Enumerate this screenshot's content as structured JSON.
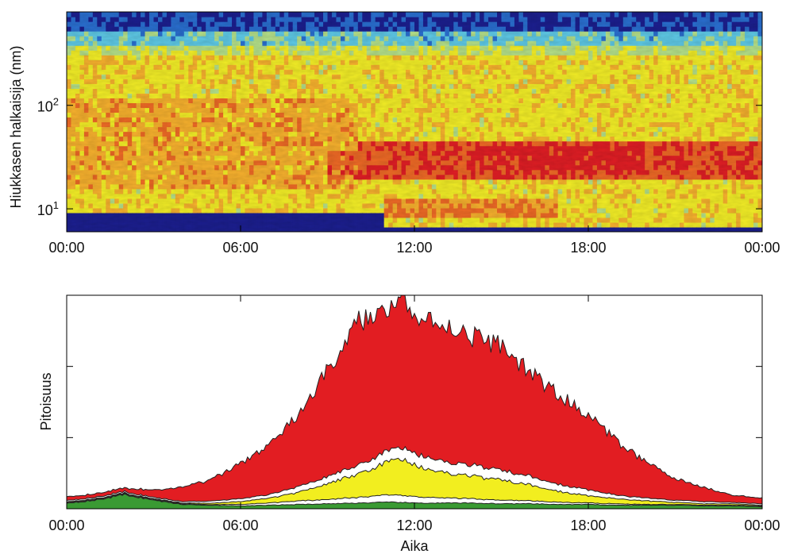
{
  "chart_data": [
    {
      "type": "heatmap",
      "ylabel": "Hiukkasen halkaisija (nm)",
      "xlabel": "",
      "x_ticks": [
        "00:00",
        "06:00",
        "12:00",
        "18:00",
        "00:00"
      ],
      "x_range_hours": [
        0,
        24
      ],
      "y_scale": "log",
      "y_ticks": [
        {
          "value": 10,
          "base": "10",
          "exp": "1"
        },
        {
          "value": 100,
          "base": "10",
          "exp": "2"
        }
      ],
      "ylim": [
        6,
        800
      ],
      "colormap": [
        "#1c1f8f",
        "#2a6fd0",
        "#5ec9e6",
        "#b4e08a",
        "#f3ee27",
        "#f7b12e",
        "#ee6a26",
        "#e01e25"
      ],
      "high_concentration_bands": [
        {
          "hours": [
            0,
            10
          ],
          "diameter_nm": [
            15,
            120
          ]
        },
        {
          "hours": [
            10,
            24
          ],
          "diameter_nm": [
            20,
            45
          ]
        },
        {
          "hours": [
            11,
            17
          ],
          "diameter_nm": [
            8,
            12
          ]
        }
      ],
      "low_diameter_cutoff_nm": {
        "before_11h": 9,
        "after_11h": 7
      }
    },
    {
      "type": "area",
      "stacked": true,
      "xlabel": "Aika",
      "ylabel": "Pitoisuus",
      "x_ticks": [
        "00:00",
        "06:00",
        "12:00",
        "18:00",
        "00:00"
      ],
      "x_range_hours": [
        0,
        24
      ],
      "ylim": [
        0,
        3
      ],
      "y_tick_positions": [
        1,
        2
      ],
      "x_hours": [
        0,
        1,
        2,
        3,
        4,
        5,
        6,
        7,
        8,
        9,
        10,
        11,
        11.5,
        12,
        13,
        14,
        15,
        16,
        17,
        18,
        19,
        20,
        21,
        22,
        23,
        24
      ],
      "series": [
        {
          "color": "#3a9a33",
          "values": [
            0.08,
            0.12,
            0.2,
            0.12,
            0.06,
            0.05,
            0.04,
            0.05,
            0.06,
            0.07,
            0.08,
            0.09,
            0.09,
            0.08,
            0.08,
            0.08,
            0.07,
            0.07,
            0.06,
            0.06,
            0.05,
            0.05,
            0.05,
            0.04,
            0.04,
            0.03
          ]
        },
        {
          "color": "#ffffff",
          "values": [
            0.01,
            0.01,
            0.01,
            0.01,
            0.01,
            0.01,
            0.02,
            0.03,
            0.05,
            0.06,
            0.08,
            0.1,
            0.1,
            0.09,
            0.07,
            0.06,
            0.05,
            0.04,
            0.03,
            0.02,
            0.02,
            0.01,
            0.01,
            0.01,
            0.01,
            0.01
          ]
        },
        {
          "color": "#f2ee1f",
          "values": [
            0.01,
            0.01,
            0.01,
            0.01,
            0.01,
            0.02,
            0.04,
            0.07,
            0.12,
            0.22,
            0.32,
            0.45,
            0.52,
            0.45,
            0.35,
            0.32,
            0.28,
            0.22,
            0.15,
            0.1,
            0.07,
            0.05,
            0.03,
            0.02,
            0.02,
            0.01
          ]
        },
        {
          "color": "#ffffff",
          "values": [
            0.02,
            0.02,
            0.02,
            0.02,
            0.02,
            0.03,
            0.04,
            0.05,
            0.08,
            0.1,
            0.12,
            0.15,
            0.16,
            0.17,
            0.16,
            0.15,
            0.14,
            0.12,
            0.1,
            0.08,
            0.05,
            0.04,
            0.03,
            0.03,
            0.02,
            0.02
          ]
        },
        {
          "color": "#e21d22",
          "values": [
            0.05,
            0.05,
            0.05,
            0.1,
            0.2,
            0.3,
            0.5,
            0.7,
            1.0,
            1.5,
            2.0,
            2.0,
            2.2,
            1.9,
            1.95,
            1.8,
            1.75,
            1.45,
            1.25,
            1.05,
            0.75,
            0.5,
            0.3,
            0.2,
            0.1,
            0.08
          ]
        }
      ]
    }
  ]
}
